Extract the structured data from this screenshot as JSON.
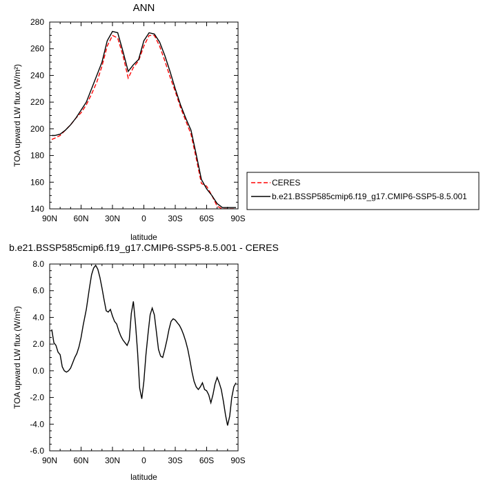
{
  "chart_data": [
    {
      "type": "line",
      "title": "ANN",
      "xlabel": "latitude",
      "ylabel": "TOA upward LW flux (W/m²)",
      "xlim": [
        90,
        -90
      ],
      "ylim": [
        140,
        280
      ],
      "x_ticks": [
        "90N",
        "60N",
        "30N",
        "0",
        "30S",
        "60S",
        "90S"
      ],
      "x_tick_values": [
        90,
        60,
        30,
        0,
        -30,
        -60,
        -90
      ],
      "y_ticks": [
        "140",
        "160",
        "180",
        "200",
        "220",
        "240",
        "260",
        "280"
      ],
      "y_tick_values": [
        140,
        160,
        180,
        200,
        220,
        240,
        260,
        280
      ],
      "legend_position": "right",
      "series": [
        {
          "name": "CERES",
          "color": "#ff0000",
          "style": "dashed",
          "x": [
            88,
            85,
            80,
            75,
            70,
            65,
            60,
            55,
            50,
            45,
            40,
            35,
            30,
            25,
            20,
            15,
            10,
            5,
            0,
            -5,
            -10,
            -15,
            -20,
            -25,
            -30,
            -35,
            -40,
            -45,
            -50,
            -55,
            -60,
            -65,
            -70,
            -75,
            -80,
            -85,
            -88
          ],
          "values": [
            192,
            193,
            195,
            199,
            203,
            208,
            212,
            218,
            226,
            235,
            247,
            262,
            270,
            268,
            255,
            238,
            246,
            251,
            262,
            270,
            270,
            262,
            251,
            239,
            228,
            216,
            206,
            196,
            178,
            159,
            157,
            150,
            142,
            140,
            140,
            140,
            140
          ]
        },
        {
          "name": "b.e21.BSSP585cmip6.f19_g17.CMIP6-SSP5-8.5.001",
          "color": "#000000",
          "style": "solid",
          "x": [
            88,
            85,
            80,
            75,
            70,
            65,
            60,
            55,
            50,
            45,
            40,
            35,
            30,
            25,
            20,
            15,
            10,
            5,
            0,
            -5,
            -10,
            -15,
            -20,
            -25,
            -30,
            -35,
            -40,
            -45,
            -50,
            -55,
            -60,
            -65,
            -70,
            -75,
            -80,
            -85,
            -88
          ],
          "values": [
            195,
            195,
            196,
            199,
            203,
            208,
            214,
            220,
            230,
            240,
            250,
            266,
            273,
            272,
            258,
            243,
            248,
            252,
            266,
            272,
            271,
            265,
            255,
            243,
            230,
            218,
            208,
            199,
            181,
            162,
            155,
            150,
            144,
            141,
            141,
            141,
            141
          ]
        }
      ]
    },
    {
      "type": "line",
      "title": "b.e21.BSSP585cmip6.f19_g17.CMIP6-SSP5-8.5.001 - CERES",
      "xlabel": "latitude",
      "ylabel": "TOA upward LW flux (W/m²)",
      "xlim": [
        90,
        -90
      ],
      "ylim": [
        -6,
        8
      ],
      "x_ticks": [
        "90N",
        "60N",
        "30N",
        "0",
        "30S",
        "60S",
        "90S"
      ],
      "x_tick_values": [
        90,
        60,
        30,
        0,
        -30,
        -60,
        -90
      ],
      "y_ticks": [
        "-6.0",
        "-4.0",
        "-2.0",
        "0.0",
        "2.0",
        "4.0",
        "6.0",
        "8.0"
      ],
      "y_tick_values": [
        -6,
        -4,
        -2,
        0,
        2,
        4,
        6,
        8
      ],
      "series": [
        {
          "name": "",
          "color": "#000000",
          "style": "solid",
          "x": [
            88,
            86,
            84,
            82,
            80,
            78,
            76,
            74,
            72,
            70,
            68,
            66,
            64,
            62,
            60,
            58,
            55,
            52,
            50,
            48,
            46,
            44,
            42,
            40,
            38,
            36,
            34,
            32,
            30,
            28,
            26,
            24,
            22,
            20,
            18,
            16,
            14,
            12,
            10,
            8,
            6,
            4,
            2,
            0,
            -2,
            -4,
            -6,
            -8,
            -10,
            -12,
            -14,
            -16,
            -18,
            -20,
            -22,
            -24,
            -26,
            -28,
            -30,
            -32,
            -34,
            -36,
            -38,
            -40,
            -42,
            -44,
            -46,
            -48,
            -50,
            -52,
            -54,
            -56,
            -58,
            -60,
            -62,
            -64,
            -66,
            -68,
            -70,
            -72,
            -74,
            -76,
            -78,
            -80,
            -82,
            -84,
            -86,
            -88
          ],
          "values": [
            3.1,
            2.1,
            1.9,
            1.4,
            1.2,
            0.3,
            0.0,
            -0.1,
            0.0,
            0.2,
            0.6,
            1.0,
            1.3,
            1.8,
            2.5,
            3.4,
            4.6,
            6.2,
            7.2,
            7.7,
            7.9,
            7.6,
            7.0,
            6.2,
            5.3,
            4.5,
            4.4,
            4.6,
            4.1,
            3.7,
            3.5,
            3.0,
            2.6,
            2.3,
            2.1,
            1.9,
            2.3,
            4.3,
            5.2,
            3.5,
            1.4,
            -1.3,
            -2.1,
            -0.8,
            1.2,
            2.8,
            4.2,
            4.7,
            4.2,
            2.9,
            1.6,
            1.1,
            1.0,
            1.6,
            2.3,
            3.1,
            3.7,
            3.9,
            3.8,
            3.6,
            3.4,
            3.1,
            2.7,
            2.2,
            1.6,
            0.8,
            -0.1,
            -0.8,
            -1.2,
            -1.4,
            -1.2,
            -0.9,
            -1.4,
            -1.5,
            -1.8,
            -2.4,
            -1.8,
            -1.0,
            -0.5,
            -0.9,
            -1.4,
            -2.3,
            -3.3,
            -4.1,
            -3.4,
            -2.0,
            -1.2,
            -0.9
          ]
        }
      ]
    }
  ]
}
